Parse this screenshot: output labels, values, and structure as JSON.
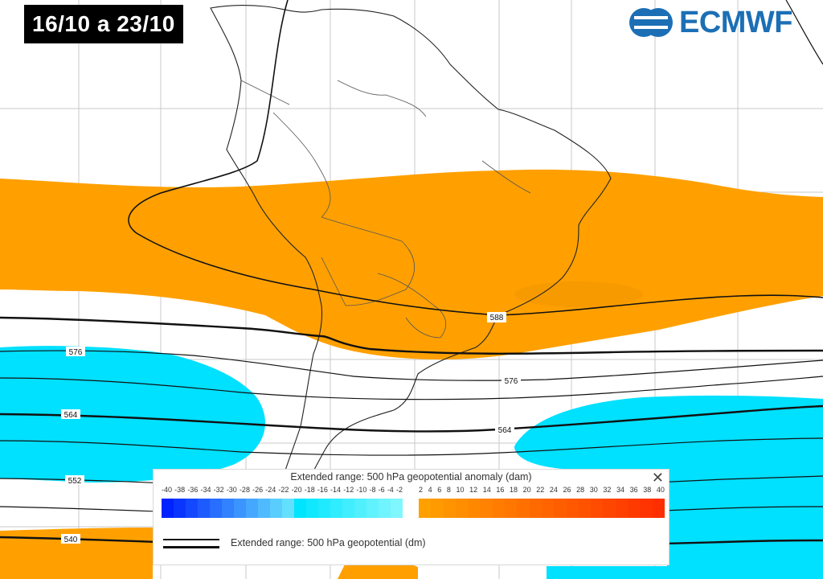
{
  "date_label": "16/10 a 23/10",
  "logo_text": "ECMWF",
  "contour_labels": [
    "576",
    "588",
    "576",
    "564",
    "564",
    "552",
    "540"
  ],
  "legend": {
    "title": "Extended range: 500 hPa geopotential anomaly (dam)",
    "negative_ticks": [
      "-40",
      "-38",
      "-36",
      "-34",
      "-32",
      "-30",
      "-28",
      "-26",
      "-24",
      "-22",
      "-20",
      "-18",
      "-16",
      "-14",
      "-12",
      "-10",
      "-8",
      "-6",
      "-4",
      "-2"
    ],
    "positive_ticks": [
      "2",
      "4",
      "6",
      "8",
      "10",
      "12",
      "14",
      "16",
      "18",
      "20",
      "22",
      "24",
      "26",
      "28",
      "30",
      "32",
      "34",
      "36",
      "38",
      "40"
    ],
    "negative_colors": [
      "#0022ff",
      "#0a35ff",
      "#1448ff",
      "#1e5bff",
      "#286eff",
      "#3281ff",
      "#3c94ff",
      "#46a7ff",
      "#50baff",
      "#5acdff",
      "#64e0ff",
      "#00e5ff",
      "#10e8ff",
      "#20eaff",
      "#30ecff",
      "#40eeff",
      "#50f0ff",
      "#60f2ff",
      "#70f4ff",
      "#80f6ff"
    ],
    "positive_colors": [
      "#ffa000",
      "#ff9a00",
      "#ff9400",
      "#ff8e00",
      "#ff8800",
      "#ff8200",
      "#ff7c00",
      "#ff7600",
      "#ff7000",
      "#ff6a00",
      "#ff6400",
      "#ff5e00",
      "#ff5800",
      "#ff5200",
      "#ff4c00",
      "#ff4600",
      "#ff4000",
      "#ff3a00",
      "#ff3400",
      "#ff2e00"
    ],
    "line_label": "Extended range: 500 hPa geopotential (dm)",
    "close_icon": "close-icon"
  },
  "colors": {
    "positive_anomaly": "#ffa000",
    "negative_anomaly": "#00e0ff",
    "coastline": "#222222",
    "contour": "#111111",
    "logo": "#1c6fb5"
  }
}
